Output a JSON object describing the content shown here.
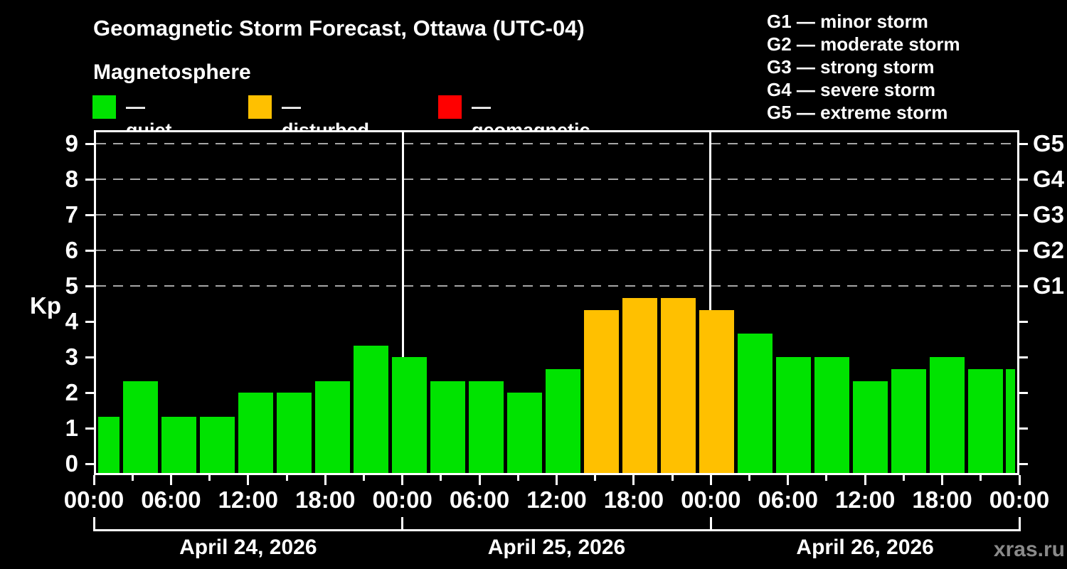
{
  "title": "Geomagnetic Storm Forecast, Ottawa (UTC-04)",
  "subtitle": "Magnetosphere",
  "watermark": "xras.ru",
  "legend": {
    "items": [
      {
        "key": "quiet",
        "label": "— quiet",
        "color": "#00e300"
      },
      {
        "key": "disturbed",
        "label": "— disturbed",
        "color": "#ffc000"
      },
      {
        "key": "storm",
        "label": "— geomagnetic storm",
        "color": "#ff0000"
      }
    ]
  },
  "g_scale_legend": [
    "G1 — minor storm",
    "G2 — moderate storm",
    "G3 — strong storm",
    "G4 — severe storm",
    "G5 — extreme storm"
  ],
  "chart_data": {
    "type": "bar",
    "title": "Geomagnetic Storm Forecast, Ottawa (UTC-04)",
    "subtitle": "Magnetosphere",
    "ylabel": "Kp",
    "xlabel": "",
    "x_unit": "hours from 00:00 April 24, 2026 (UTC-04)",
    "x_hours": [
      0,
      3,
      6,
      9,
      12,
      15,
      18,
      21,
      24,
      27,
      30,
      33,
      36,
      39,
      42,
      45,
      48,
      51,
      54,
      57,
      60,
      63,
      66,
      69,
      72
    ],
    "values": [
      1.33,
      2.33,
      1.33,
      1.33,
      2.0,
      2.0,
      2.33,
      3.33,
      3.0,
      2.33,
      2.33,
      2.0,
      2.67,
      4.33,
      4.67,
      4.67,
      4.33,
      3.67,
      3.0,
      3.0,
      2.33,
      2.67,
      3.0,
      2.67,
      2.67
    ],
    "status": [
      "quiet",
      "quiet",
      "quiet",
      "quiet",
      "quiet",
      "quiet",
      "quiet",
      "quiet",
      "quiet",
      "quiet",
      "quiet",
      "quiet",
      "quiet",
      "disturbed",
      "disturbed",
      "disturbed",
      "disturbed",
      "quiet",
      "quiet",
      "quiet",
      "quiet",
      "quiet",
      "quiet",
      "quiet",
      "quiet"
    ],
    "status_colors": {
      "quiet": "#00e300",
      "disturbed": "#ffc000",
      "storm": "#ff0000"
    },
    "ylim": [
      -0.35,
      9.4
    ],
    "xlim_hours": [
      0,
      72
    ],
    "y_ticks": [
      0,
      1,
      2,
      3,
      4,
      5,
      6,
      7,
      8,
      9
    ],
    "dashed_gridlines_at_kp": [
      5,
      6,
      7,
      8,
      9
    ],
    "right_axis_labels": [
      {
        "kp": 5,
        "label": "G1"
      },
      {
        "kp": 6,
        "label": "G2"
      },
      {
        "kp": 7,
        "label": "G3"
      },
      {
        "kp": 8,
        "label": "G4"
      },
      {
        "kp": 9,
        "label": "G5"
      }
    ],
    "x_minor_tick_every_hours": 3,
    "x_label_every_hours": 6,
    "x_tick_labels": [
      "00:00",
      "06:00",
      "12:00",
      "18:00",
      "00:00",
      "06:00",
      "12:00",
      "18:00",
      "00:00",
      "06:00",
      "12:00",
      "18:00",
      "00:00"
    ],
    "day_boundaries_hours": [
      0,
      24,
      48,
      72
    ],
    "day_labels": [
      "April 24, 2026",
      "April 25, 2026",
      "April 26, 2026"
    ],
    "legend_position": "top-left",
    "grid": "horizontal dashed lines at Kp 5-9 only",
    "day_separator_lines_at_hours": [
      24,
      48
    ],
    "background_color": "#000000",
    "axis_color": "#ffffff"
  }
}
